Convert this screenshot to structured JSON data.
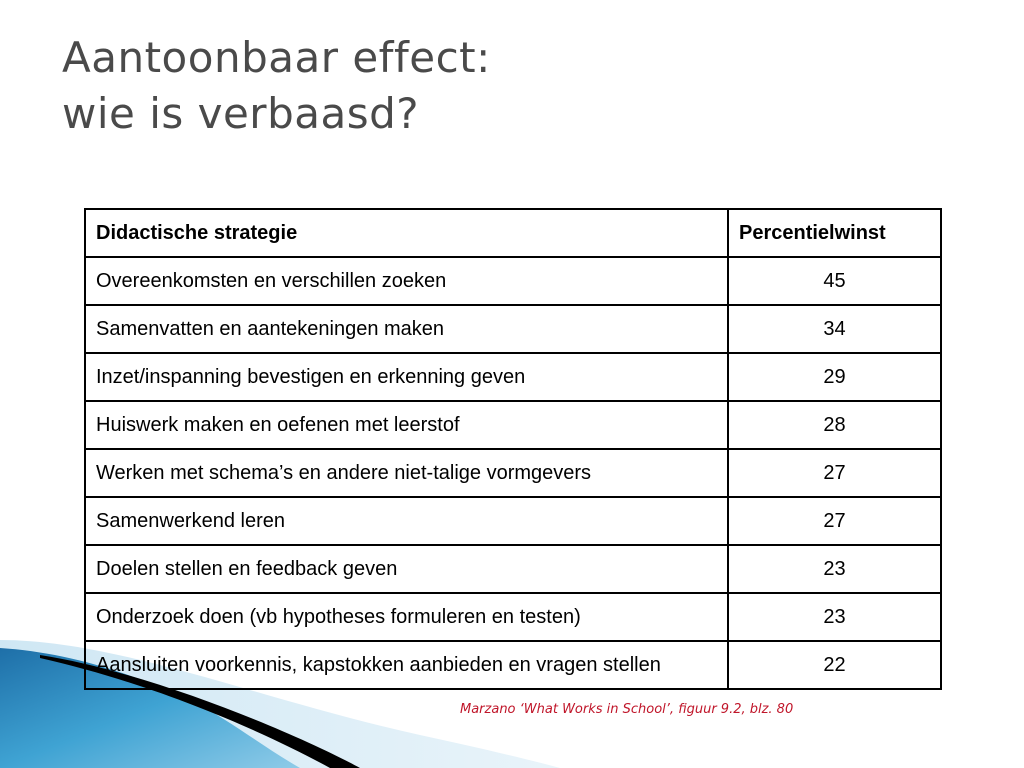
{
  "title": {
    "line1": "Aantoonbaar effect:",
    "line2": "wie is verbaasd?"
  },
  "table": {
    "headers": [
      "Didactische strategie",
      "Percentielwinst"
    ],
    "rows": [
      {
        "strategy": "Overeenkomsten en verschillen zoeken",
        "value": "45"
      },
      {
        "strategy": "Samenvatten en aantekeningen maken",
        "value": "34"
      },
      {
        "strategy": "Inzet/inspanning bevestigen en erkenning geven",
        "value": "29"
      },
      {
        "strategy": "Huiswerk maken en oefenen met leerstof",
        "value": "28"
      },
      {
        "strategy": "Werken met schema’s en andere niet-talige vormgevers",
        "value": "27"
      },
      {
        "strategy": "Samenwerkend leren",
        "value": "27"
      },
      {
        "strategy": "Doelen stellen en feedback geven",
        "value": "23"
      },
      {
        "strategy": "Onderzoek doen (vb hypotheses formuleren en testen)",
        "value": "23"
      },
      {
        "strategy": "Aansluiten voorkennis, kapstokken aanbieden en vragen stellen",
        "value": "22"
      }
    ]
  },
  "source": "Marzano ‘What Works in School’, figuur 9.2, blz. 80",
  "colors": {
    "title": "#4a4a4a",
    "source": "#c0162a",
    "wave_blue": "#3f9fce",
    "wave_light": "#a9d4ea",
    "wave_dark": "#000000"
  }
}
